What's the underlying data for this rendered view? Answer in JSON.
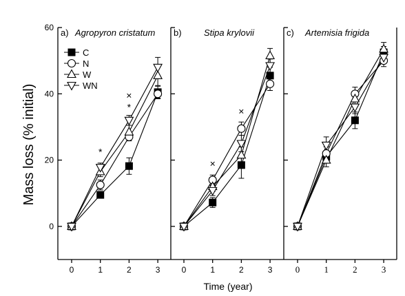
{
  "figure": {
    "ylabel": "Mass loss (% initial)",
    "xlabel": "Time (year)"
  },
  "legend": {
    "entries": [
      {
        "label": "C",
        "marker": "square-filled"
      },
      {
        "label": "N",
        "marker": "circle-open"
      },
      {
        "label": "W",
        "marker": "triangle-up-open"
      },
      {
        "label": "WN",
        "marker": "triangle-down-open"
      }
    ]
  },
  "chart_data": [
    {
      "type": "line",
      "panel_label": "a)",
      "title": "Agropyron cristatum",
      "x": [
        0,
        1,
        2,
        3
      ],
      "xticks": [
        "0",
        "1",
        "2",
        "3"
      ],
      "ylim": [
        -10,
        60
      ],
      "yticks": [
        0,
        20,
        40,
        60
      ],
      "series": [
        {
          "name": "C",
          "values": [
            0,
            9.5,
            18.2,
            40.5
          ],
          "err": [
            0,
            1.0,
            2.5,
            1.8
          ]
        },
        {
          "name": "N",
          "values": [
            0,
            12.5,
            27.0,
            40.0
          ],
          "err": [
            0,
            1.5,
            1.2,
            1.5
          ]
        },
        {
          "name": "W",
          "values": [
            0,
            16.5,
            28.5,
            45.5
          ],
          "err": [
            0,
            1.5,
            2.0,
            3.0
          ]
        },
        {
          "name": "WN",
          "values": [
            0,
            17.8,
            32.0,
            48.0
          ],
          "err": [
            0,
            1.3,
            1.5,
            3.0
          ]
        }
      ],
      "annotations": [
        {
          "text": "*",
          "x": 1,
          "y": 22.5
        },
        {
          "text": "*",
          "x": 2,
          "y": 36.0
        },
        {
          "text": "×",
          "x": 2,
          "y": 39.5
        }
      ]
    },
    {
      "type": "line",
      "panel_label": "b)",
      "title": "Stipa krylovii",
      "x": [
        0,
        1,
        2,
        3
      ],
      "xticks": [
        "0",
        "1",
        "2",
        "3"
      ],
      "ylim": [
        -10,
        60
      ],
      "series": [
        {
          "name": "C",
          "values": [
            0,
            7.2,
            18.5,
            45.5
          ],
          "err": [
            0,
            1.5,
            4.0,
            2.5
          ]
        },
        {
          "name": "N",
          "values": [
            0,
            14.0,
            29.5,
            43.0
          ],
          "err": [
            0,
            1.5,
            2.0,
            2.0
          ]
        },
        {
          "name": "W",
          "values": [
            0,
            12.0,
            21.5,
            51.5
          ],
          "err": [
            0,
            1.5,
            2.5,
            2.2
          ]
        },
        {
          "name": "WN",
          "values": [
            0,
            10.8,
            25.0,
            48.5
          ],
          "err": [
            0,
            1.5,
            2.5,
            2.0
          ]
        }
      ],
      "annotations": [
        {
          "text": "×",
          "x": 1,
          "y": 19.0
        },
        {
          "text": "×",
          "x": 2,
          "y": 34.8
        }
      ]
    },
    {
      "type": "line",
      "panel_label": "c)",
      "title": "Artemisia frigida",
      "x": [
        0,
        1,
        2,
        3
      ],
      "xticks": [
        "0",
        "1",
        "2",
        "3"
      ],
      "ylim": [
        -10,
        60
      ],
      "series": [
        {
          "name": "C",
          "values": [
            0,
            21.0,
            32.0,
            52.5
          ],
          "err": [
            0,
            1.5,
            2.5,
            1.8
          ]
        },
        {
          "name": "N",
          "values": [
            0,
            22.0,
            40.0,
            50.0
          ],
          "err": [
            0,
            2.0,
            2.0,
            1.8
          ]
        },
        {
          "name": "W",
          "values": [
            0,
            20.0,
            38.5,
            53.5
          ],
          "err": [
            0,
            2.0,
            1.8,
            2.0
          ]
        },
        {
          "name": "WN",
          "values": [
            0,
            24.5,
            36.0,
            51.0
          ],
          "err": [
            0,
            2.5,
            2.0,
            1.8
          ]
        }
      ],
      "annotations": []
    }
  ]
}
